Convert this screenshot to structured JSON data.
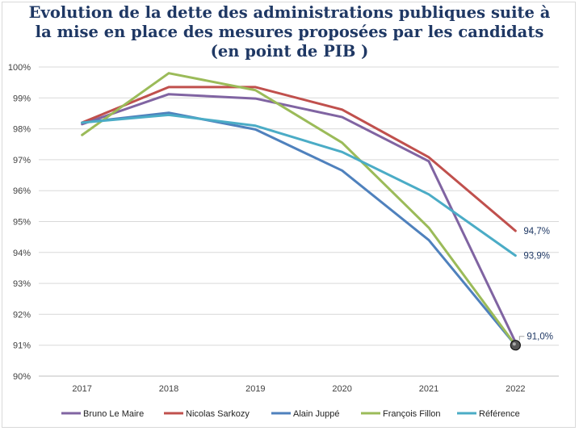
{
  "chart_data": {
    "type": "line",
    "title_lines": [
      "Evolution de la dette des administrations publiques suite à",
      "la mise en place des mesures proposées par les candidats",
      "(en point de PIB )"
    ],
    "xlabel": "",
    "ylabel": "",
    "categories": [
      "2017",
      "2018",
      "2019",
      "2020",
      "2021",
      "2022"
    ],
    "y_ticks": [
      "90%",
      "91%",
      "92%",
      "93%",
      "94%",
      "95%",
      "96%",
      "97%",
      "98%",
      "99%",
      "100%"
    ],
    "ylim": [
      90,
      100
    ],
    "grid": true,
    "legend_position": "bottom",
    "series": [
      {
        "name": "Bruno Le Maire",
        "color": "#8064a2",
        "values": [
          98.15,
          99.12,
          98.98,
          98.38,
          96.95,
          91.1
        ]
      },
      {
        "name": "Nicolas Sarkozy",
        "color": "#c0504d",
        "values": [
          98.2,
          99.35,
          99.35,
          98.62,
          97.08,
          94.7
        ]
      },
      {
        "name": "Alain Juppé",
        "color": "#4f81bd",
        "values": [
          98.2,
          98.52,
          97.98,
          96.65,
          94.4,
          91.0
        ]
      },
      {
        "name": "François Fillon",
        "color": "#9bbb59",
        "values": [
          97.8,
          99.8,
          99.25,
          97.55,
          94.8,
          91.0
        ]
      },
      {
        "name": "Référence",
        "color": "#4bacc6",
        "values": [
          98.2,
          98.45,
          98.1,
          97.25,
          95.88,
          93.9
        ]
      }
    ],
    "data_labels": [
      {
        "series": "Nicolas Sarkozy",
        "category": "2022",
        "text": "94,7%"
      },
      {
        "series": "Référence",
        "category": "2022",
        "text": "93,9%"
      },
      {
        "series": "Alain Juppé",
        "category": "2022",
        "text": "91,0%"
      }
    ]
  }
}
